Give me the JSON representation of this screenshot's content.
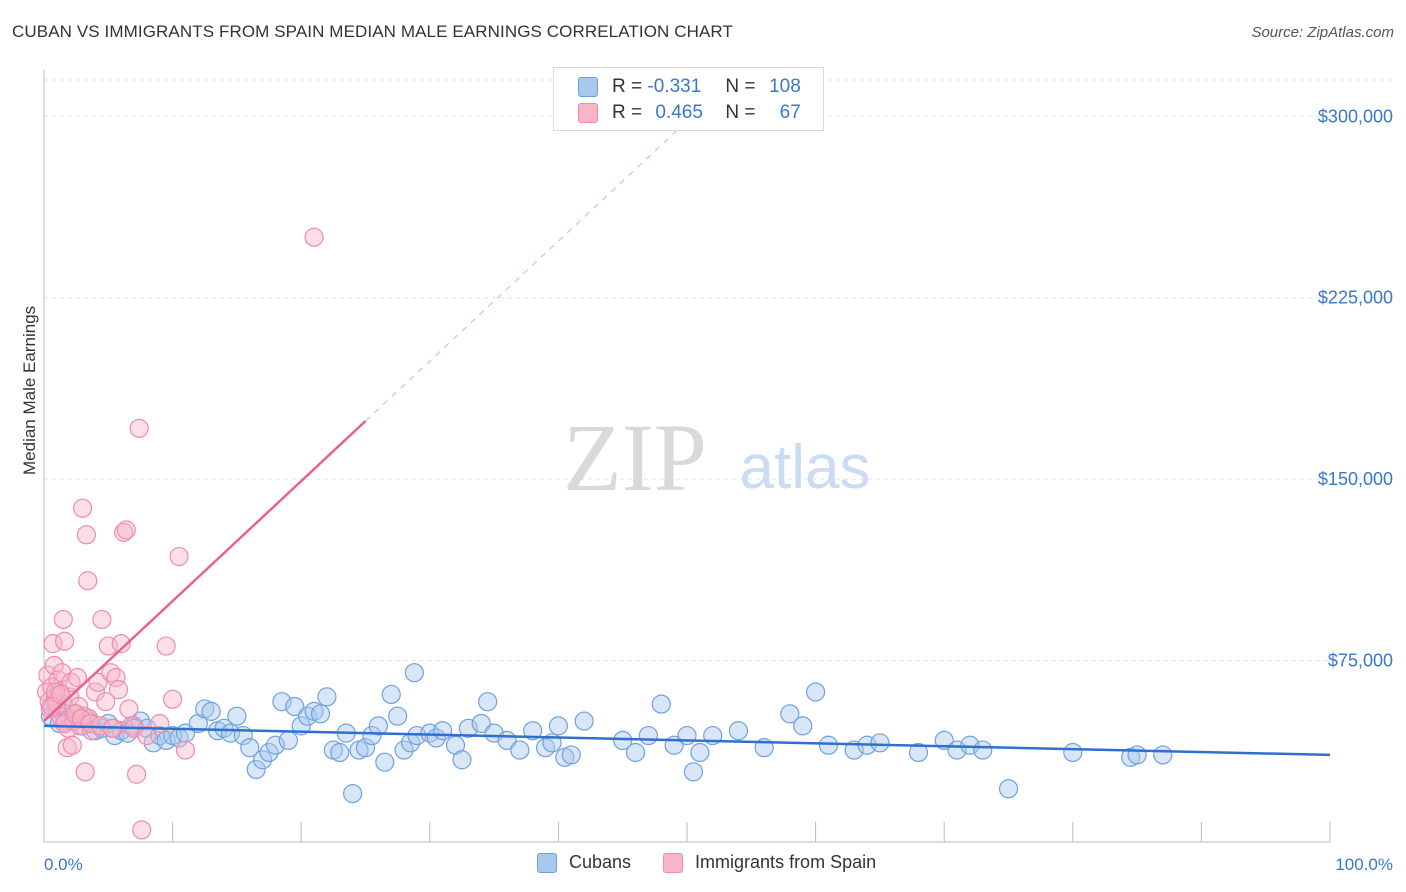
{
  "title": "CUBAN VS IMMIGRANTS FROM SPAIN MEDIAN MALE EARNINGS CORRELATION CHART",
  "source": "Source: ZipAtlas.com",
  "watermark": {
    "zip": "ZIP",
    "atlas": "atlas"
  },
  "legend": {
    "rows": [
      {
        "r_label": "R =",
        "r_value": "-0.331",
        "n_label": "N =",
        "n_value": "108",
        "color": "#a9c8ee"
      },
      {
        "r_label": "R =",
        "r_value": "0.465",
        "n_label": "N =",
        "n_value": "67",
        "color": "#f6b6c8"
      }
    ]
  },
  "bottom_legend": [
    {
      "label": "Cubans",
      "color": "#a9c8ee"
    },
    {
      "label": "Immigrants from Spain",
      "color": "#f6b6c8"
    }
  ],
  "chart_data": {
    "type": "scatter",
    "title": "CUBAN VS IMMIGRANTS FROM SPAIN MEDIAN MALE EARNINGS CORRELATION CHART",
    "xlabel": "",
    "ylabel": "Median Male Earnings",
    "xlim": [
      0,
      100
    ],
    "ylim": [
      0,
      315000
    ],
    "x_tick_labels": {
      "left": "0.0%",
      "right": "100.0%"
    },
    "y_ticks": [
      75000,
      150000,
      225000,
      300000
    ],
    "y_tick_labels": [
      "$75,000",
      "$150,000",
      "$225,000",
      "$300,000"
    ],
    "series": [
      {
        "name": "Cubans",
        "color": "#6fa1e0",
        "fill": "#a9c8ee",
        "line_color": "#2f6fd0",
        "trend": {
          "x0": 0,
          "y0": 48000,
          "x1": 100,
          "y1": 36000,
          "dashed_extension": false
        },
        "points": [
          [
            0.5,
            52000
          ],
          [
            0.8,
            58000
          ],
          [
            1.0,
            55000
          ],
          [
            1.2,
            49000
          ],
          [
            1.5,
            57000
          ],
          [
            2.0,
            51000
          ],
          [
            2.5,
            53000
          ],
          [
            3.0,
            48000
          ],
          [
            3.5,
            50000
          ],
          [
            4.0,
            46000
          ],
          [
            4.5,
            47000
          ],
          [
            5.0,
            49000
          ],
          [
            5.5,
            44000
          ],
          [
            6.0,
            46000
          ],
          [
            6.5,
            45000
          ],
          [
            7.0,
            48000
          ],
          [
            7.5,
            50000
          ],
          [
            8.0,
            47000
          ],
          [
            8.5,
            41000
          ],
          [
            9.0,
            44000
          ],
          [
            9.5,
            42000
          ],
          [
            10.0,
            44000
          ],
          [
            10.5,
            43000
          ],
          [
            11.0,
            45000
          ],
          [
            12.0,
            49000
          ],
          [
            12.5,
            55000
          ],
          [
            13.0,
            54000
          ],
          [
            13.5,
            46000
          ],
          [
            14.0,
            47000
          ],
          [
            14.5,
            45000
          ],
          [
            15.0,
            52000
          ],
          [
            15.5,
            44000
          ],
          [
            16.0,
            39000
          ],
          [
            16.5,
            30000
          ],
          [
            17.0,
            34000
          ],
          [
            17.5,
            37000
          ],
          [
            18.0,
            40000
          ],
          [
            18.5,
            58000
          ],
          [
            19.0,
            42000
          ],
          [
            19.5,
            56000
          ],
          [
            20.0,
            48000
          ],
          [
            20.5,
            52000
          ],
          [
            21.0,
            54000
          ],
          [
            21.5,
            53000
          ],
          [
            22.0,
            60000
          ],
          [
            22.5,
            38000
          ],
          [
            23.0,
            37000
          ],
          [
            23.5,
            45000
          ],
          [
            24.0,
            20000
          ],
          [
            24.5,
            38000
          ],
          [
            25.0,
            39000
          ],
          [
            25.5,
            44000
          ],
          [
            26.0,
            48000
          ],
          [
            26.5,
            33000
          ],
          [
            27.0,
            61000
          ],
          [
            27.5,
            52000
          ],
          [
            28.0,
            38000
          ],
          [
            28.5,
            41000
          ],
          [
            28.8,
            70000
          ],
          [
            29.0,
            44000
          ],
          [
            30.0,
            45000
          ],
          [
            30.5,
            43000
          ],
          [
            31.0,
            46000
          ],
          [
            32.0,
            40000
          ],
          [
            32.5,
            34000
          ],
          [
            33.0,
            47000
          ],
          [
            34.0,
            49000
          ],
          [
            34.5,
            58000
          ],
          [
            35.0,
            45000
          ],
          [
            36.0,
            42000
          ],
          [
            37.0,
            38000
          ],
          [
            38.0,
            46000
          ],
          [
            39.0,
            39000
          ],
          [
            39.5,
            41000
          ],
          [
            40.0,
            48000
          ],
          [
            40.5,
            35000
          ],
          [
            41.0,
            36000
          ],
          [
            42.0,
            50000
          ],
          [
            45.0,
            42000
          ],
          [
            46.0,
            37000
          ],
          [
            47.0,
            44000
          ],
          [
            48.0,
            57000
          ],
          [
            49.0,
            40000
          ],
          [
            50.0,
            44000
          ],
          [
            51.0,
            37000
          ],
          [
            52.0,
            44000
          ],
          [
            54.0,
            46000
          ],
          [
            56.0,
            39000
          ],
          [
            58.0,
            53000
          ],
          [
            59.0,
            48000
          ],
          [
            60.0,
            62000
          ],
          [
            61.0,
            40000
          ],
          [
            63.0,
            38000
          ],
          [
            64.0,
            40000
          ],
          [
            65.0,
            41000
          ],
          [
            68.0,
            37000
          ],
          [
            70.0,
            42000
          ],
          [
            71.0,
            38000
          ],
          [
            72.0,
            40000
          ],
          [
            73.0,
            38000
          ],
          [
            75.0,
            22000
          ],
          [
            80.0,
            37000
          ],
          [
            84.5,
            35000
          ],
          [
            85.0,
            36000
          ],
          [
            87.0,
            36000
          ],
          [
            50.5,
            29000
          ]
        ]
      },
      {
        "name": "Immigrants from Spain",
        "color": "#f08bb0",
        "fill": "#f6b6c8",
        "line_color": "#e8628f",
        "trend": {
          "x0": 0,
          "y0": 50000,
          "x1": 25,
          "y1": 174000,
          "dashed_extension": true,
          "dashed_to": {
            "x": 50,
            "y": 298000
          }
        },
        "points": [
          [
            0.2,
            62000
          ],
          [
            0.3,
            69000
          ],
          [
            0.4,
            58000
          ],
          [
            0.5,
            55000
          ],
          [
            0.6,
            64000
          ],
          [
            0.7,
            82000
          ],
          [
            0.8,
            73000
          ],
          [
            0.9,
            60000
          ],
          [
            1.0,
            57000
          ],
          [
            1.1,
            67000
          ],
          [
            1.2,
            62000
          ],
          [
            1.3,
            52000
          ],
          [
            1.4,
            70000
          ],
          [
            1.5,
            92000
          ],
          [
            1.6,
            83000
          ],
          [
            1.7,
            50000
          ],
          [
            1.8,
            39000
          ],
          [
            1.9,
            47000
          ],
          [
            2.0,
            60000
          ],
          [
            2.1,
            66000
          ],
          [
            2.2,
            40000
          ],
          [
            2.3,
            50000
          ],
          [
            2.5,
            53000
          ],
          [
            2.6,
            68000
          ],
          [
            2.7,
            56000
          ],
          [
            2.8,
            48000
          ],
          [
            3.0,
            138000
          ],
          [
            3.1,
            52000
          ],
          [
            3.2,
            29000
          ],
          [
            3.3,
            127000
          ],
          [
            3.4,
            108000
          ],
          [
            3.5,
            51000
          ],
          [
            3.7,
            46000
          ],
          [
            4.0,
            62000
          ],
          [
            4.2,
            66000
          ],
          [
            4.5,
            92000
          ],
          [
            4.8,
            58000
          ],
          [
            5.0,
            81000
          ],
          [
            5.2,
            70000
          ],
          [
            5.4,
            47000
          ],
          [
            5.6,
            68000
          ],
          [
            5.8,
            63000
          ],
          [
            6.0,
            82000
          ],
          [
            6.2,
            128000
          ],
          [
            6.4,
            129000
          ],
          [
            6.6,
            55000
          ],
          [
            6.8,
            48000
          ],
          [
            7.0,
            47000
          ],
          [
            7.2,
            28000
          ],
          [
            7.4,
            171000
          ],
          [
            7.6,
            5000
          ],
          [
            8.0,
            44000
          ],
          [
            9.0,
            49000
          ],
          [
            9.5,
            81000
          ],
          [
            10.0,
            59000
          ],
          [
            10.5,
            118000
          ],
          [
            11.0,
            38000
          ],
          [
            21.0,
            250000
          ],
          [
            0.9,
            62000
          ],
          [
            1.6,
            49000
          ],
          [
            2.4,
            53000
          ],
          [
            2.9,
            51000
          ],
          [
            3.6,
            49000
          ],
          [
            4.4,
            48000
          ],
          [
            5.3,
            47000
          ],
          [
            0.6,
            56000
          ],
          [
            1.3,
            61000
          ]
        ]
      }
    ]
  }
}
